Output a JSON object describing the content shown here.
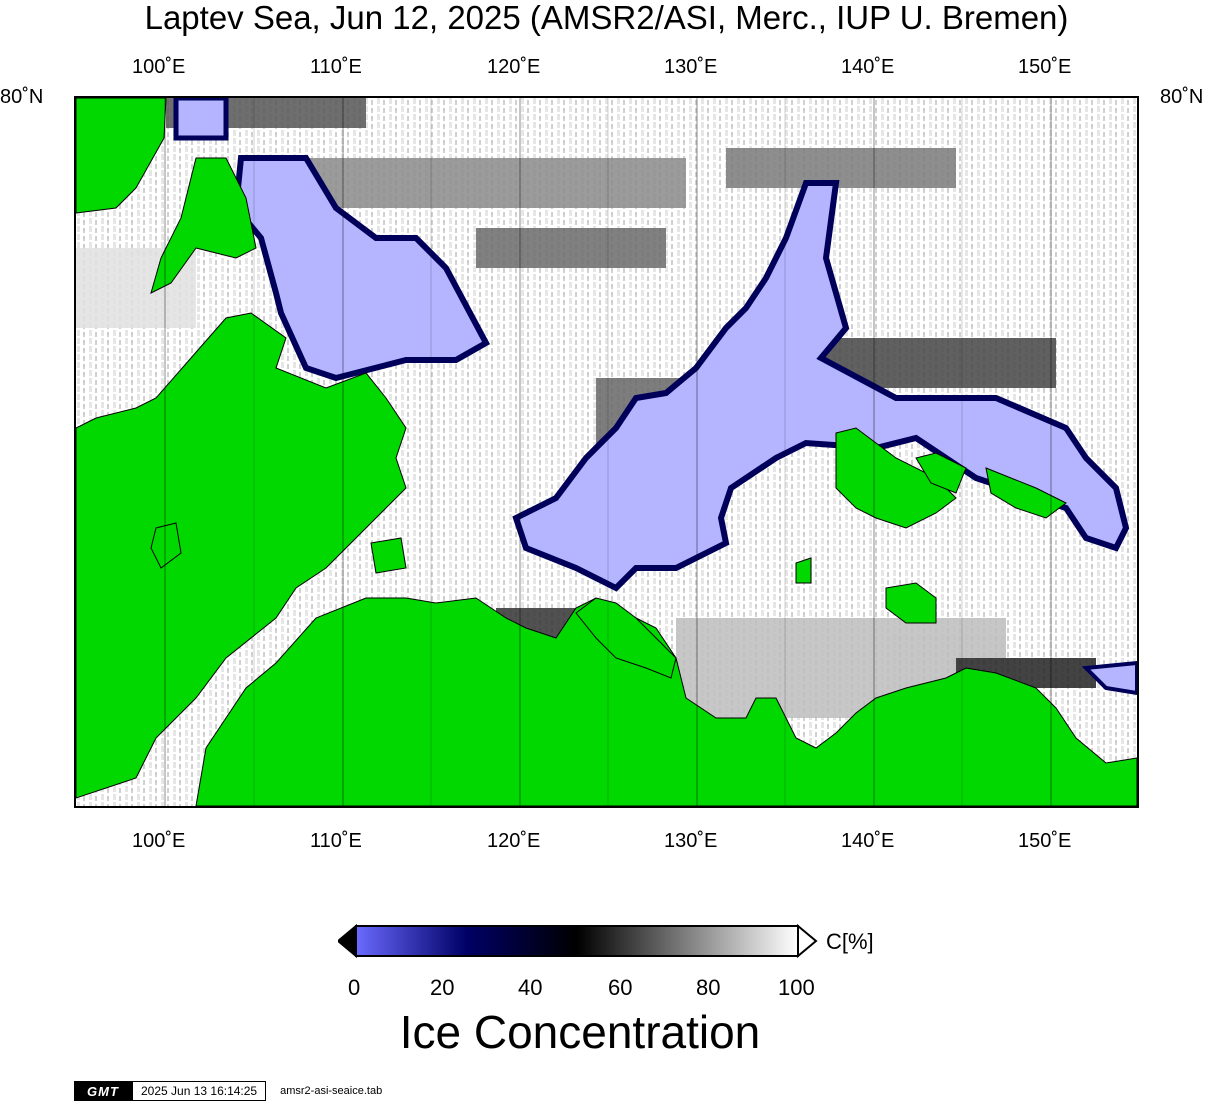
{
  "title": "Laptev Sea, Jun 12, 2025 (AMSR2/ASI, Merc., IUP U. Bremen)",
  "map": {
    "lon_labels": [
      "100˚E",
      "110˚E",
      "120˚E",
      "130˚E",
      "140˚E",
      "150˚E"
    ],
    "lat_label": "80˚N",
    "colors": {
      "land": "#00d800",
      "open_water": "#b4b4ff",
      "ice_high": "#ffffff",
      "ice_low": "#000000",
      "graticule": "#000000"
    }
  },
  "colorbar": {
    "ticks": [
      "0",
      "20",
      "40",
      "60",
      "80",
      "100"
    ],
    "unit": "C[%]",
    "title": "Ice Concentration",
    "stops": [
      "#6a6aff",
      "#000066",
      "#000000",
      "#808080",
      "#ffffff"
    ]
  },
  "footer": {
    "logo": "GMT",
    "timestamp": "2025 Jun 13 16:14:25",
    "file": "amsr2-asi-seaice.tab"
  }
}
